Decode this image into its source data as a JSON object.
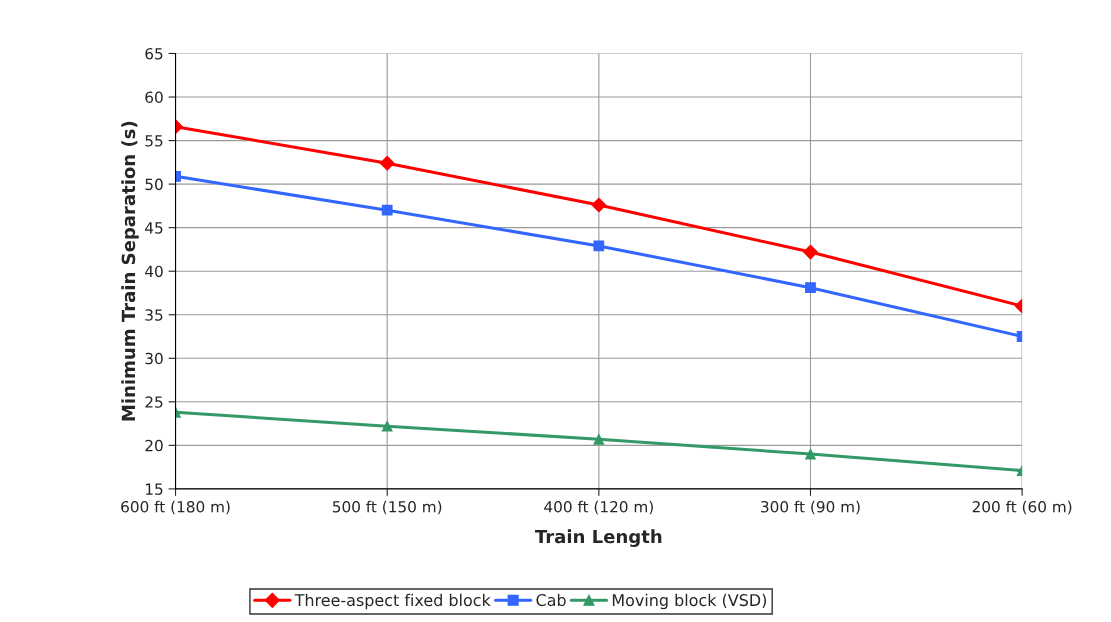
{
  "chart_data": {
    "type": "line",
    "xlabel": "Train Length",
    "ylabel": "Minimum Train Separation (s)",
    "categories": [
      "600 ft (180 m)",
      "500 ft (150 m)",
      "400 ft (120 m)",
      "300 ft (90 m)",
      "200 ft (60 m)"
    ],
    "series": [
      {
        "name": "Three-aspect fixed block",
        "color": "#ff0000",
        "marker": "diamond",
        "values": [
          56.6,
          52.4,
          47.6,
          42.2,
          36.0
        ]
      },
      {
        "name": "Cab",
        "color": "#3366ff",
        "marker": "square",
        "values": [
          50.9,
          47.0,
          42.9,
          38.1,
          32.5
        ]
      },
      {
        "name": "Moving block (VSD)",
        "color": "#339966",
        "marker": "triangle",
        "values": [
          23.8,
          22.2,
          20.7,
          19.0,
          17.1
        ]
      }
    ],
    "ylim": [
      15,
      65
    ],
    "yticks": [
      15,
      20,
      25,
      30,
      35,
      40,
      45,
      50,
      55,
      60,
      65
    ],
    "grid": true,
    "legend": "bottom",
    "line_style": "solid"
  }
}
